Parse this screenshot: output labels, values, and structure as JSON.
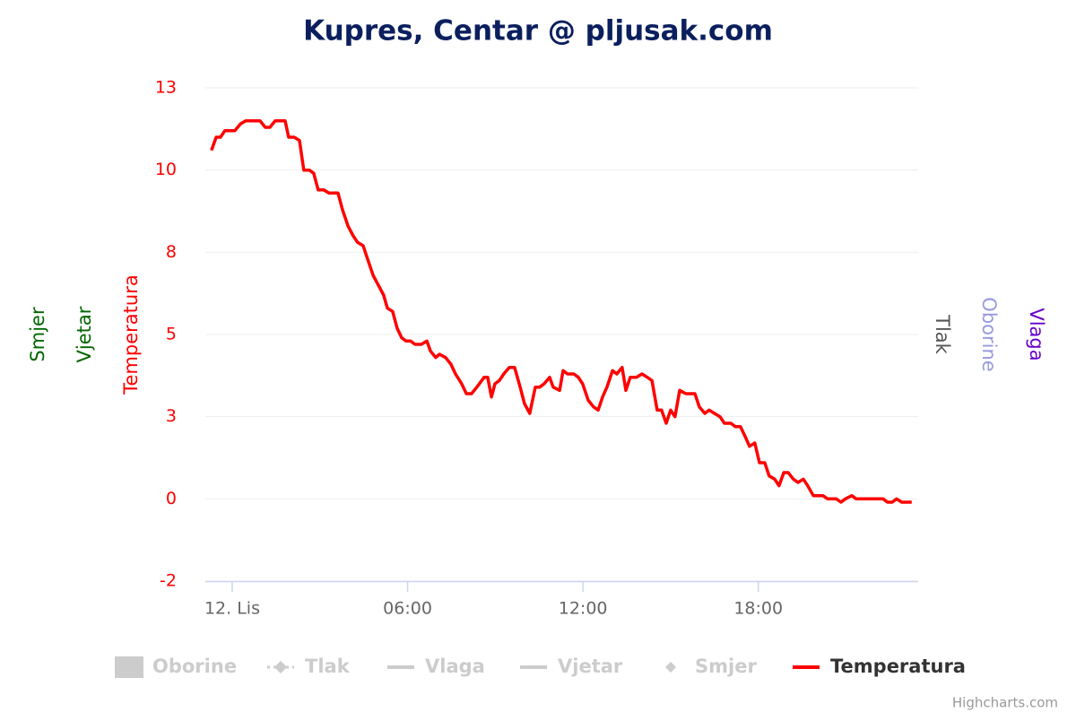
{
  "chart_data": {
    "type": "line",
    "title": "Kupres, Centar @ pljusak.com",
    "credits": "Highcharts.com",
    "y_axis_title": "Temperatura",
    "y_axis_color": "#ff0000",
    "extra_axis_titles": [
      {
        "text": "Smjer",
        "color": "#006600",
        "side": "left"
      },
      {
        "text": "Vjetar",
        "color": "#006600",
        "side": "left"
      },
      {
        "text": "Tlak",
        "color": "#555555",
        "side": "right"
      },
      {
        "text": "Oborine",
        "color": "#9999dd",
        "side": "right"
      },
      {
        "text": "Vlaga",
        "color": "#6600cc",
        "side": "right"
      }
    ],
    "xlim": [
      -0.92,
      23.47
    ],
    "xticks": [
      {
        "value": 0,
        "label": "12. Lis"
      },
      {
        "value": 6,
        "label": "06:00"
      },
      {
        "value": 12,
        "label": "12:00"
      },
      {
        "value": 18,
        "label": "18:00"
      }
    ],
    "ylim": [
      -2.5,
      12.5
    ],
    "yticks": [
      {
        "value": 12.5,
        "label": "13"
      },
      {
        "value": 10,
        "label": "10"
      },
      {
        "value": 7.5,
        "label": "8"
      },
      {
        "value": 5,
        "label": "5"
      },
      {
        "value": 2.5,
        "label": "3"
      },
      {
        "value": 0,
        "label": "0"
      },
      {
        "value": -2.5,
        "label": "-2"
      }
    ],
    "grid": true,
    "x": [
      -0.71,
      -0.55,
      -0.4,
      -0.25,
      0.09,
      0.28,
      0.46,
      0.95,
      1.13,
      1.29,
      1.47,
      1.81,
      1.93,
      2.12,
      2.3,
      2.45,
      2.64,
      2.79,
      2.94,
      3.13,
      3.31,
      3.62,
      3.77,
      3.96,
      4.14,
      4.29,
      4.48,
      4.63,
      4.82,
      4.94,
      5.18,
      5.31,
      5.49,
      5.64,
      5.8,
      5.95,
      6.1,
      6.26,
      6.47,
      6.66,
      6.78,
      6.96,
      7.09,
      7.3,
      7.48,
      7.64,
      7.85,
      8.01,
      8.19,
      8.37,
      8.62,
      8.74,
      8.87,
      8.99,
      9.14,
      9.29,
      9.48,
      9.66,
      9.85,
      10.0,
      10.18,
      10.37,
      10.52,
      10.67,
      10.86,
      10.98,
      11.2,
      11.32,
      11.47,
      11.69,
      11.84,
      11.99,
      12.18,
      12.36,
      12.52,
      12.67,
      12.82,
      13.01,
      13.16,
      13.34,
      13.47,
      13.62,
      13.83,
      14.02,
      14.2,
      14.36,
      14.54,
      14.69,
      14.85,
      15.0,
      15.15,
      15.31,
      15.52,
      15.83,
      15.98,
      16.17,
      16.32,
      16.5,
      16.69,
      16.84,
      17.06,
      17.21,
      17.39,
      17.55,
      17.7,
      17.88,
      18.04,
      18.22,
      18.37,
      18.56,
      18.71,
      18.87,
      19.02,
      19.2,
      19.36,
      19.54,
      19.69,
      19.88,
      20.21,
      20.37,
      20.67,
      20.83,
      20.98,
      21.2,
      21.35,
      22.27,
      22.42,
      22.58,
      22.73,
      22.91,
      23.25
    ],
    "series": [
      {
        "name": "Oborine",
        "color": "#cccccc",
        "visible": false,
        "symbol": "square"
      },
      {
        "name": "Tlak",
        "color": "#cccccc",
        "visible": false,
        "symbol": "dotted-diamond"
      },
      {
        "name": "Vlaga",
        "color": "#cccccc",
        "visible": false,
        "symbol": "line"
      },
      {
        "name": "Vjetar",
        "color": "#cccccc",
        "visible": false,
        "symbol": "line"
      },
      {
        "name": "Smjer",
        "color": "#cccccc",
        "visible": false,
        "symbol": "diamond"
      },
      {
        "name": "Temperatura",
        "color": "#ff0000",
        "visible": true,
        "symbol": "line",
        "values": [
          10.6,
          11.0,
          11.0,
          11.2,
          11.2,
          11.4,
          11.5,
          11.5,
          11.3,
          11.3,
          11.5,
          11.5,
          11.0,
          11.0,
          10.9,
          10.0,
          10.0,
          9.9,
          9.4,
          9.4,
          9.3,
          9.3,
          8.8,
          8.3,
          8.0,
          7.8,
          7.7,
          7.3,
          6.8,
          6.6,
          6.2,
          5.8,
          5.7,
          5.2,
          4.9,
          4.8,
          4.8,
          4.7,
          4.7,
          4.8,
          4.5,
          4.3,
          4.4,
          4.3,
          4.1,
          3.8,
          3.5,
          3.2,
          3.2,
          3.4,
          3.7,
          3.7,
          3.1,
          3.5,
          3.6,
          3.8,
          4.0,
          4.0,
          3.4,
          2.9,
          2.6,
          3.4,
          3.4,
          3.5,
          3.7,
          3.4,
          3.3,
          3.9,
          3.8,
          3.8,
          3.7,
          3.5,
          3.0,
          2.8,
          2.7,
          3.1,
          3.4,
          3.9,
          3.8,
          4.0,
          3.3,
          3.7,
          3.7,
          3.8,
          3.7,
          3.6,
          2.7,
          2.7,
          2.3,
          2.7,
          2.5,
          3.3,
          3.2,
          3.2,
          2.8,
          2.6,
          2.7,
          2.6,
          2.5,
          2.3,
          2.3,
          2.2,
          2.2,
          1.9,
          1.6,
          1.7,
          1.1,
          1.1,
          0.7,
          0.6,
          0.4,
          0.8,
          0.8,
          0.6,
          0.5,
          0.6,
          0.4,
          0.1,
          0.1,
          0.0,
          0.0,
          -0.1,
          0.0,
          0.1,
          0.0,
          0.0,
          -0.1,
          -0.1,
          0.0,
          -0.1,
          -0.1
        ]
      }
    ]
  }
}
